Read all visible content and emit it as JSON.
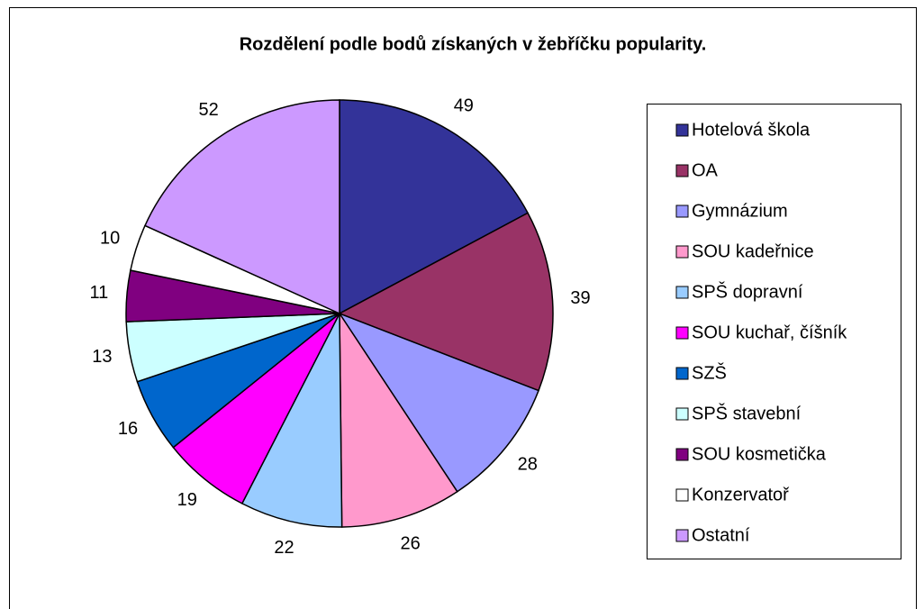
{
  "chart_data": {
    "type": "pie",
    "title": "Rozdělení podle bodů získaných v žebříčku popularity.",
    "categories": [
      "Hotelová škola",
      "OA",
      "Gymnázium",
      "SOU kadeřnice",
      "SPŠ dopravní",
      "SOU kuchař, číšník",
      "SZŠ",
      "SPŠ stavební",
      "SOU kosmetička",
      "Konzervatoř",
      "Ostatní"
    ],
    "values": [
      49,
      39,
      28,
      26,
      22,
      19,
      16,
      13,
      11,
      10,
      52
    ],
    "colors": [
      "#333399",
      "#993366",
      "#9999ff",
      "#ff99cc",
      "#99ccff",
      "#ff00ff",
      "#0066cc",
      "#ccffff",
      "#800080",
      "#ffffff",
      "#cc99ff"
    ],
    "legend": "right"
  }
}
